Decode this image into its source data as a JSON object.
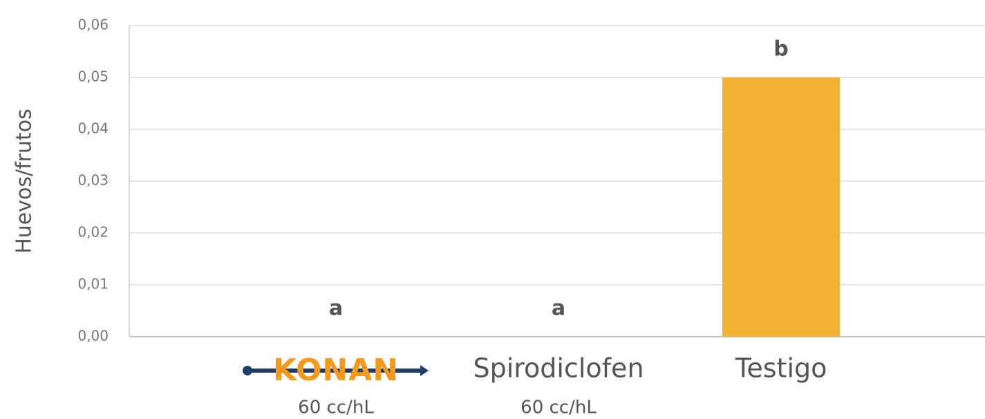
{
  "chart_data": {
    "type": "bar",
    "y_label": "Huevos/frutos",
    "categories": [
      "KONAN",
      "Spirodiclofen",
      "Testigo"
    ],
    "sublabels": [
      "60 cc/hL",
      "60 cc/hL",
      null
    ],
    "values": [
      0,
      0,
      0.05
    ],
    "annotations": [
      "a",
      "a",
      "b"
    ],
    "color": "#f5b335",
    "ylim": [
      0,
      0.06
    ],
    "yticks": [
      {
        "value": 0,
        "label": "0,00"
      },
      {
        "value": 0.01,
        "label": "0,01"
      },
      {
        "value": 0.02,
        "label": "0,02"
      },
      {
        "value": 0.03,
        "label": "0,03"
      },
      {
        "value": 0.04,
        "label": "0,04"
      },
      {
        "value": 0.05,
        "label": "0,05"
      },
      {
        "value": 0.06,
        "label": "0,06"
      }
    ],
    "grid": true
  }
}
